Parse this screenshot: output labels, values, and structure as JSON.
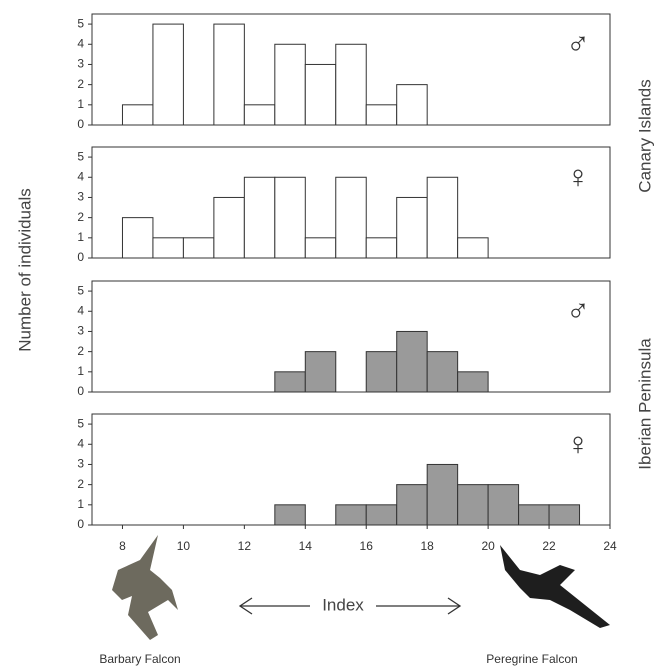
{
  "labels": {
    "y_label": "Number of individuals",
    "group_top": "Canary Islands",
    "group_bottom": "Iberian Peninsula",
    "x_label": "Index",
    "left_bird": "Barbary Falcon",
    "right_bird": "Peregrine Falcon"
  },
  "chart_data": [
    {
      "type": "histogram",
      "symbol": "♂",
      "color": "#ffffff",
      "bins": [
        8,
        9,
        10,
        11,
        12,
        13,
        14,
        15,
        16,
        17,
        18,
        19,
        20,
        21,
        22,
        23
      ],
      "counts": [
        1,
        5,
        0,
        5,
        1,
        4,
        3,
        4,
        1,
        2,
        0,
        0,
        0,
        0,
        0
      ],
      "xlim": [
        7,
        24
      ],
      "ylim": [
        0,
        5.5
      ],
      "yticks": [
        0,
        1,
        2,
        3,
        4,
        5
      ]
    },
    {
      "type": "histogram",
      "symbol": "♀",
      "color": "#ffffff",
      "bins": [
        8,
        9,
        10,
        11,
        12,
        13,
        14,
        15,
        16,
        17,
        18,
        19,
        20,
        21,
        22,
        23
      ],
      "counts": [
        2,
        1,
        1,
        3,
        4,
        4,
        1,
        4,
        1,
        3,
        4,
        1,
        0,
        0,
        0
      ],
      "xlim": [
        7,
        24
      ],
      "ylim": [
        0,
        5.5
      ],
      "yticks": [
        0,
        1,
        2,
        3,
        4,
        5
      ]
    },
    {
      "type": "histogram",
      "symbol": "♂",
      "color": "#9a9a9a",
      "bins": [
        8,
        9,
        10,
        11,
        12,
        13,
        14,
        15,
        16,
        17,
        18,
        19,
        20,
        21,
        22,
        23
      ],
      "counts": [
        0,
        0,
        0,
        0,
        0,
        1,
        2,
        0,
        2,
        3,
        2,
        1,
        0,
        0,
        0
      ],
      "xlim": [
        7,
        24
      ],
      "ylim": [
        0,
        5.5
      ],
      "yticks": [
        0,
        1,
        2,
        3,
        4,
        5
      ]
    },
    {
      "type": "histogram",
      "symbol": "♀",
      "color": "#9a9a9a",
      "bins": [
        8,
        9,
        10,
        11,
        12,
        13,
        14,
        15,
        16,
        17,
        18,
        19,
        20,
        21,
        22,
        23
      ],
      "counts": [
        0,
        0,
        0,
        0,
        0,
        1,
        0,
        1,
        1,
        2,
        3,
        2,
        2,
        1,
        1
      ],
      "xlim": [
        7,
        24
      ],
      "ylim": [
        0,
        5.5
      ],
      "yticks": [
        0,
        1,
        2,
        3,
        4,
        5
      ],
      "xticks": [
        8,
        10,
        12,
        14,
        16,
        18,
        20,
        22,
        24
      ]
    }
  ]
}
